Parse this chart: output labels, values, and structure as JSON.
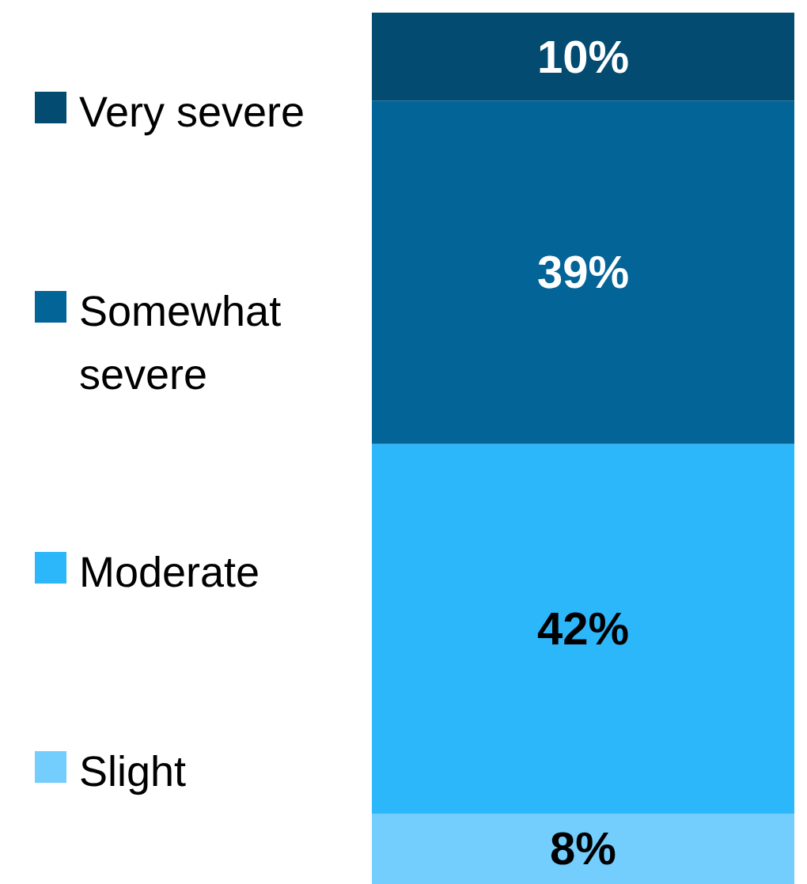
{
  "chart_data": {
    "type": "bar",
    "stacked": true,
    "categories": [
      null
    ],
    "legend": "left",
    "data_labels": true,
    "series": [
      {
        "name": "Slight",
        "color": "#73cdfd",
        "values": [
          8
        ],
        "value_labels": [
          "8%"
        ]
      },
      {
        "name": "Moderate",
        "color": "#2db7fb",
        "values": [
          42
        ],
        "value_labels": [
          "42%"
        ]
      },
      {
        "name": "Somewhat severe",
        "color": "#036498",
        "values": [
          39
        ],
        "value_labels": [
          "39%"
        ]
      },
      {
        "name": "Very severe",
        "color": "#034b70",
        "values": [
          10
        ],
        "value_labels": [
          "10%"
        ]
      }
    ]
  }
}
